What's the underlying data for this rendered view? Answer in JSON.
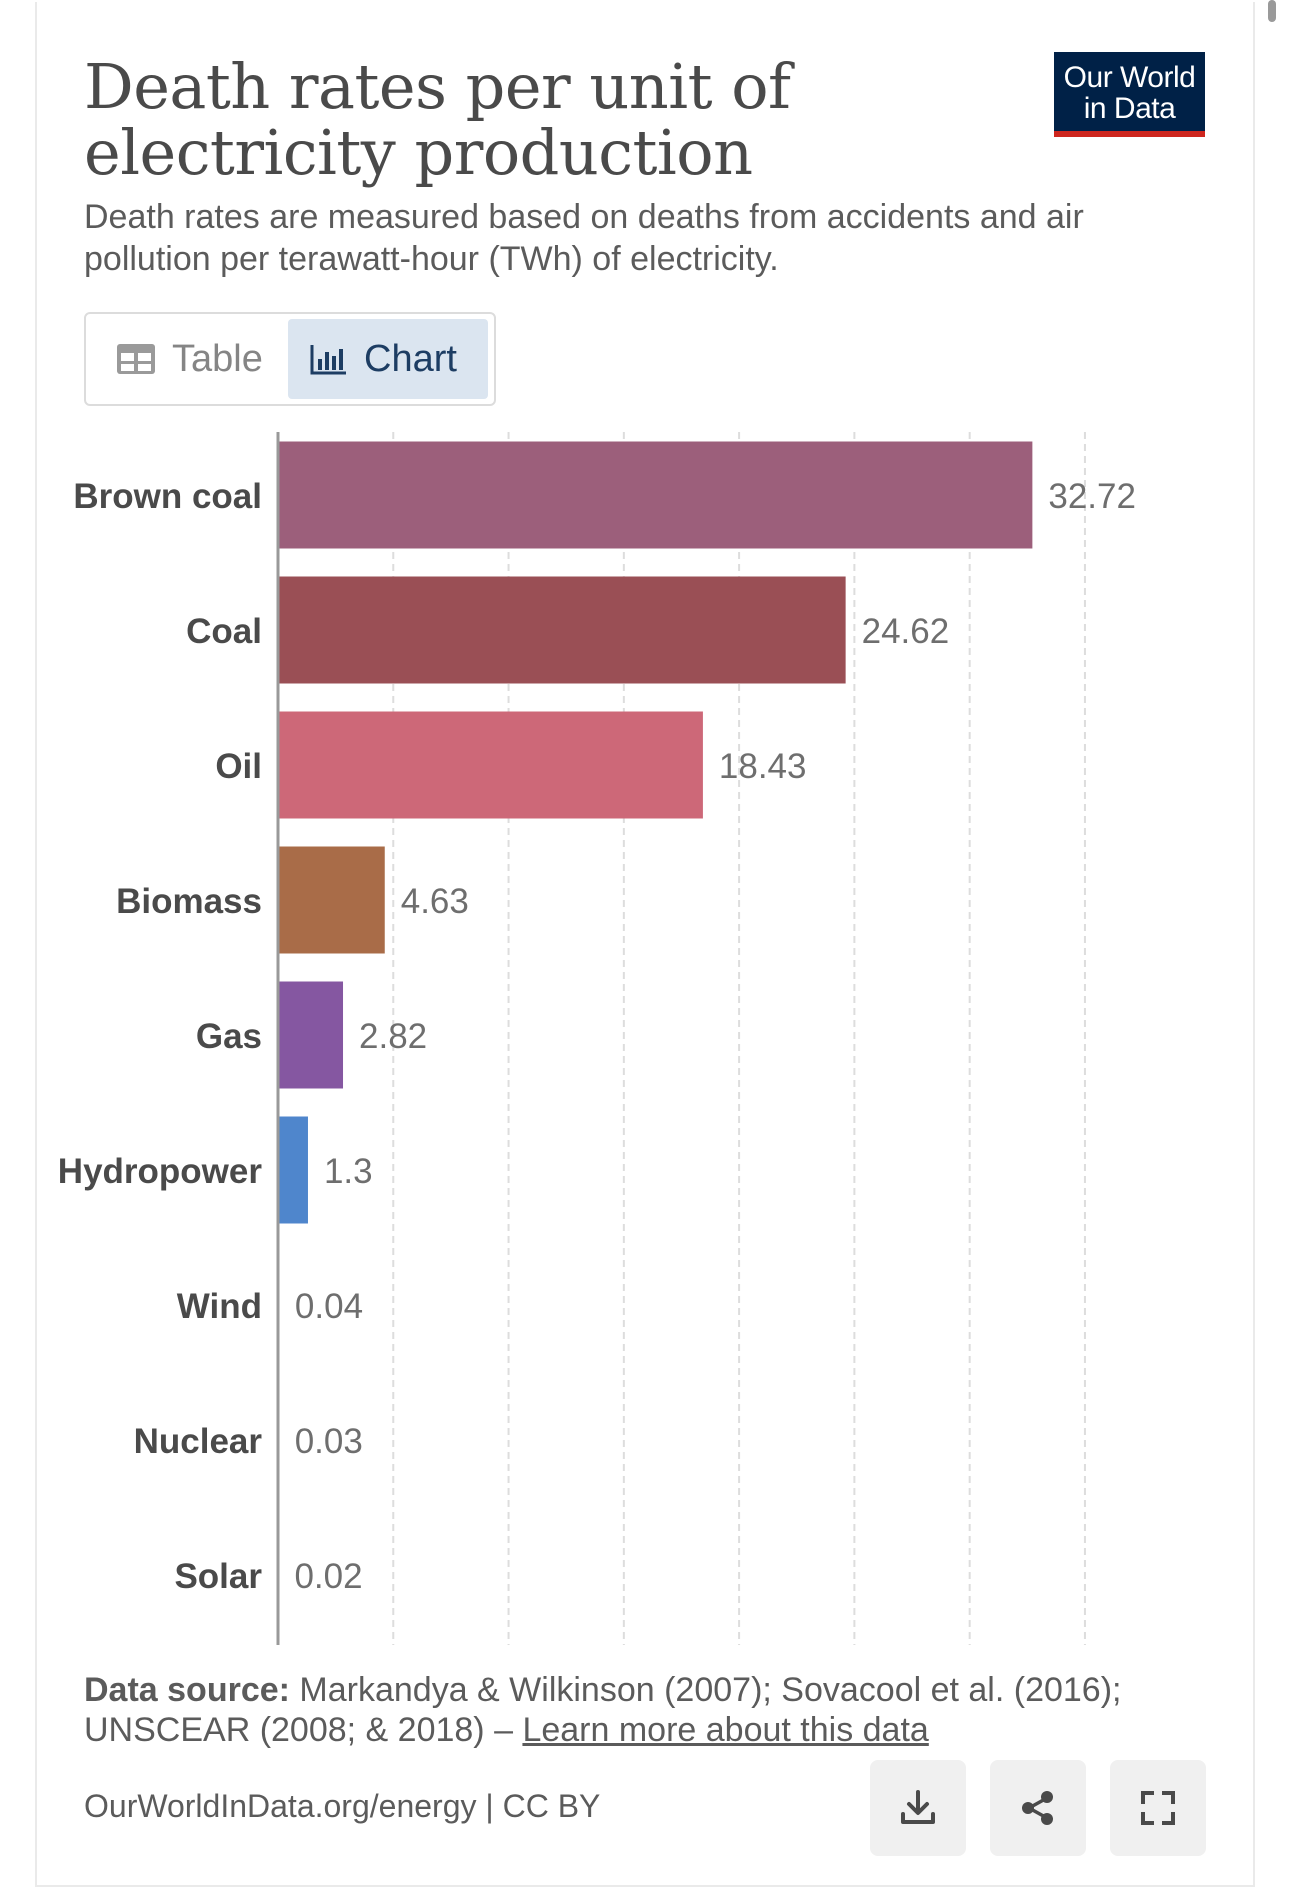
{
  "header": {
    "title": "Death rates per unit of electricity production",
    "subtitle": "Death rates are measured based on deaths from accidents and air pollution per terawatt-hour (TWh) of electricity.",
    "logo_line1": "Our World",
    "logo_line2": "in Data"
  },
  "tabs": [
    {
      "label": "Table",
      "icon": "table-icon",
      "active": false
    },
    {
      "label": "Chart",
      "icon": "bar-chart-icon",
      "active": true
    }
  ],
  "chart_data": {
    "type": "bar",
    "orientation": "horizontal",
    "title": "Death rates per unit of electricity production",
    "xlabel": "",
    "ylabel": "",
    "xlim": [
      0,
      36
    ],
    "grid": true,
    "grid_step": 5,
    "categories": [
      "Brown coal",
      "Coal",
      "Oil",
      "Biomass",
      "Gas",
      "Hydropower",
      "Wind",
      "Nuclear",
      "Solar"
    ],
    "values": [
      32.72,
      24.62,
      18.43,
      4.63,
      2.82,
      1.3,
      0.04,
      0.03,
      0.02
    ],
    "value_labels": [
      "32.72",
      "24.62",
      "18.43",
      "4.63",
      "2.82",
      "1.3",
      "0.04",
      "0.03",
      "0.02"
    ],
    "colors": [
      "#9c5f7b",
      "#9a4f55",
      "#cd6878",
      "#a96c48",
      "#8557a1",
      "#4f86cc",
      "#4f86cc",
      "#4f86cc",
      "#4f86cc"
    ]
  },
  "footer": {
    "source_label": "Data source:",
    "source_text": "Markandya & Wilkinson (2007); Sovacool et al. (2016); UNSCEAR (2008; & 2018) –",
    "learn_more": "Learn more about this data",
    "url_license": "OurWorldInData.org/energy | CC BY"
  },
  "actions": [
    {
      "name": "download",
      "icon": "download-icon"
    },
    {
      "name": "share",
      "icon": "share-icon"
    },
    {
      "name": "fullscreen",
      "icon": "fullscreen-icon"
    }
  ]
}
